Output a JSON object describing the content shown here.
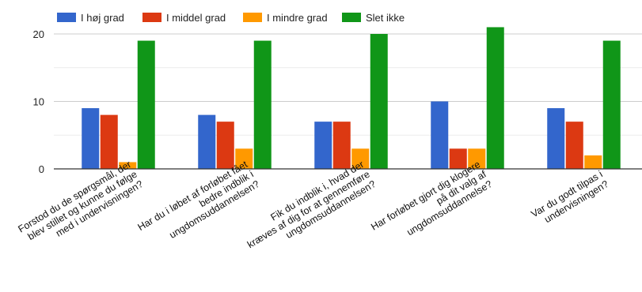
{
  "chart_data": {
    "type": "bar",
    "title": "",
    "xlabel": "",
    "ylabel": "",
    "ylim": [
      0,
      22
    ],
    "yticks": [
      0,
      10,
      20
    ],
    "grid": true,
    "legend_position": "top-left",
    "categories": [
      [
        "Forstod du de spørgsmål, der",
        "blev stillet og kunne du følge",
        "med i undervisningen?"
      ],
      [
        "Har du i løbet af forløbet fået",
        "bedre indblik i",
        "ungdomsuddannelsen?"
      ],
      [
        "Fik du indblik i, hvad der",
        "kræves af dig for at gennemføre",
        "ungdomsuddannelsen?"
      ],
      [
        "Har forløbet gjort dig klogere",
        "på dit valg af",
        "ungdomsuddannelse?"
      ],
      [
        "Var du godt tilpas i",
        "undervisningen?"
      ]
    ],
    "series": [
      {
        "name": "I høj grad",
        "color": "#3366cc",
        "values": [
          9,
          8,
          7,
          10,
          9
        ]
      },
      {
        "name": "I middel grad",
        "color": "#dc3912",
        "values": [
          8,
          7,
          7,
          3,
          7
        ]
      },
      {
        "name": "I mindre grad",
        "color": "#ff9900",
        "values": [
          1,
          3,
          3,
          3,
          2
        ]
      },
      {
        "name": "Slet ikke",
        "color": "#109618",
        "values": [
          19,
          19,
          20,
          21,
          19
        ]
      }
    ]
  }
}
